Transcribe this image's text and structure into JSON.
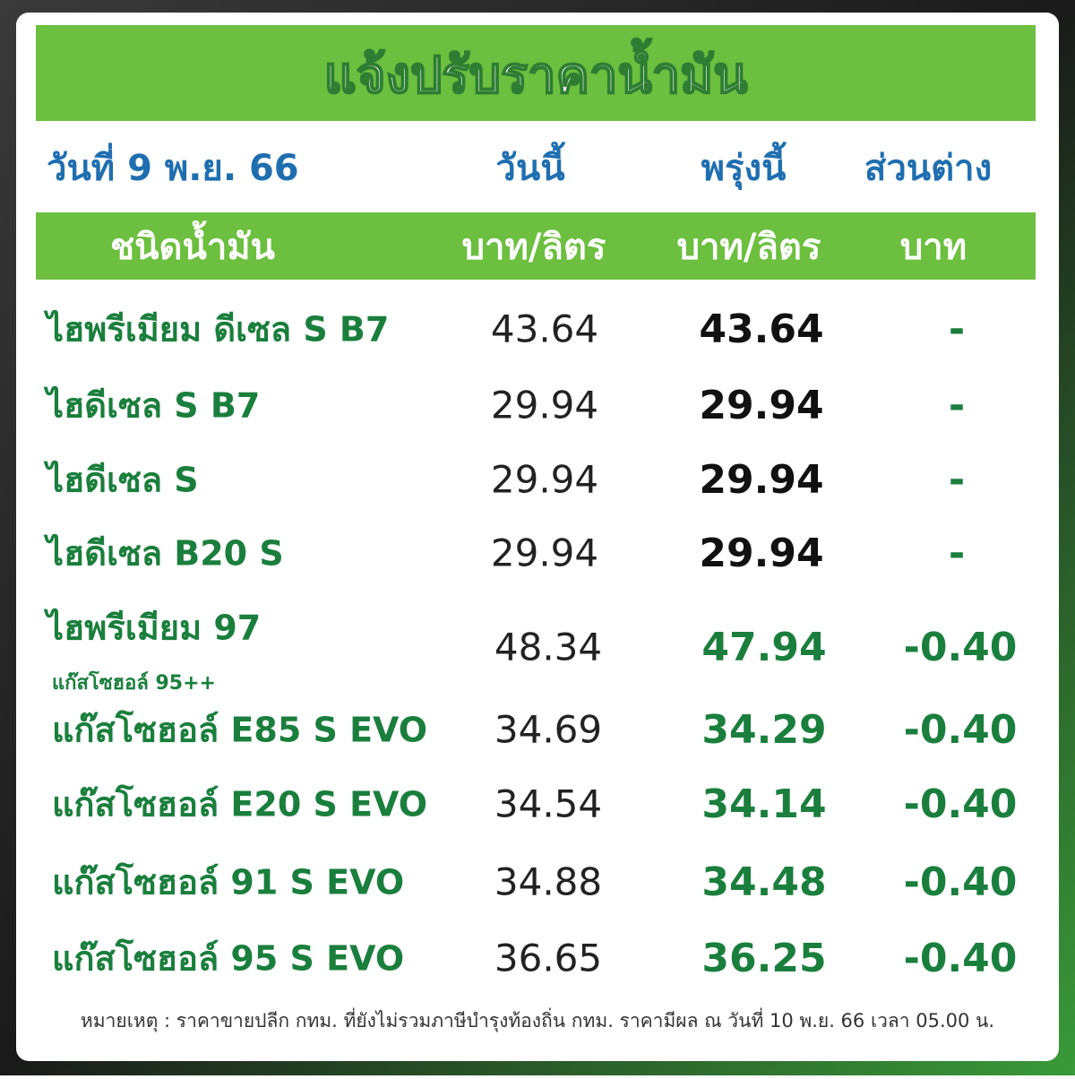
{
  "header": {
    "title": "แจ้งปรับราคาน้ำมัน",
    "date": "วันที่ 9 พ.ย. 66",
    "columns": [
      "วันนี้",
      "พรุ่งนี้",
      "ส่วนต่าง"
    ]
  },
  "units": [
    "ชนิดน้ำมัน",
    "บาท/ลิตร",
    "บาท/ลิตร",
    "บาท"
  ],
  "rows": [
    {
      "name": "ไฮพรีเมียม ดีเซล S B7",
      "today": "43.64",
      "tomorrow": "43.64",
      "diff": "-"
    },
    {
      "name": "ไฮดีเซล S B7",
      "today": "29.94",
      "tomorrow": "29.94",
      "diff": "-"
    },
    {
      "name": "ไฮดีเซล S",
      "today": "29.94",
      "tomorrow": "29.94",
      "diff": "-"
    },
    {
      "name": "ไฮดีเซล B20 S",
      "today": "29.94",
      "tomorrow": "29.94",
      "diff": "-"
    },
    {
      "name": "ไฮพรีเมียม 97",
      "sub": "แก๊สโซฮอล์ 95++",
      "today": "48.34",
      "tomorrow": "47.94",
      "diff": "-0.40"
    },
    {
      "name": "แก๊สโซฮอล์ E85 S EVO",
      "today": "34.69",
      "tomorrow": "34.29",
      "diff": "-0.40"
    },
    {
      "name": "แก๊สโซฮอล์ E20 S EVO",
      "today": "34.54",
      "tomorrow": "34.14",
      "diff": "-0.40"
    },
    {
      "name": "แก๊สโซฮอล์ 91 S EVO",
      "today": "34.88",
      "tomorrow": "34.48",
      "diff": "-0.40"
    },
    {
      "name": "แก๊สโซฮอล์ 95 S EVO",
      "today": "36.65",
      "tomorrow": "36.25",
      "diff": "-0.40"
    }
  ],
  "note": "หมายเหตุ :  ราคาขายปลีก กทม. ที่ยังไม่รวมภาษีบำรุงท้องถิ่น กทม.  ราคามีผล ณ วันที่ 10 พ.ย. 66 เวลา 05.00 น."
}
